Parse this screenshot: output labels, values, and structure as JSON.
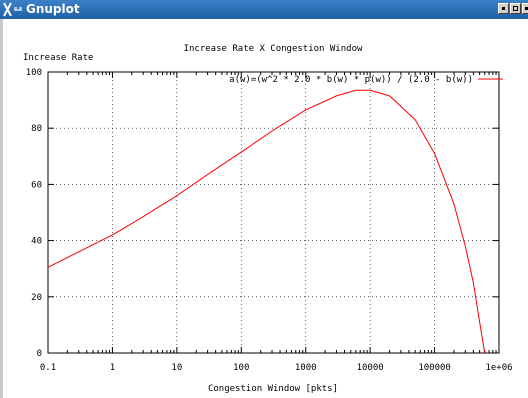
{
  "window": {
    "title": "Gnuplot",
    "logo_icon": "x-window-logo-icon",
    "controls": [
      "minimize-icon",
      "maximize-icon",
      "close-icon"
    ]
  },
  "chart_data": {
    "type": "line",
    "title": "Increase Rate X Congestion Window",
    "ylabel": "Increase Rate",
    "xlabel": "Congestion Window [pkts]",
    "xscale": "log",
    "xlim": [
      0.1,
      1000000
    ],
    "ylim": [
      0,
      100
    ],
    "x_ticks": [
      "0.1",
      "1",
      "10",
      "100",
      "1000",
      "10000",
      "100000",
      "1e+06"
    ],
    "y_ticks": [
      "0",
      "20",
      "40",
      "60",
      "80",
      "100"
    ],
    "grid": true,
    "grid_style": "dotted",
    "legend_position": "top-right",
    "series": [
      {
        "name": "a(w)=(w^2 * 2.0 * b(w) * p(w)) / (2.0 - b(w))",
        "color": "#ff0000",
        "x": [
          0.1,
          0.3,
          1,
          3,
          10,
          30,
          100,
          300,
          1000,
          3000,
          6000,
          10000,
          20000,
          50000,
          100000,
          200000,
          300000,
          400000,
          500000,
          600000
        ],
        "y": [
          30.5,
          36,
          42,
          48.5,
          56,
          63.5,
          71.5,
          79,
          86.5,
          91.5,
          93.5,
          93.5,
          91.5,
          83,
          71,
          53,
          38,
          25,
          11,
          0
        ]
      }
    ]
  }
}
